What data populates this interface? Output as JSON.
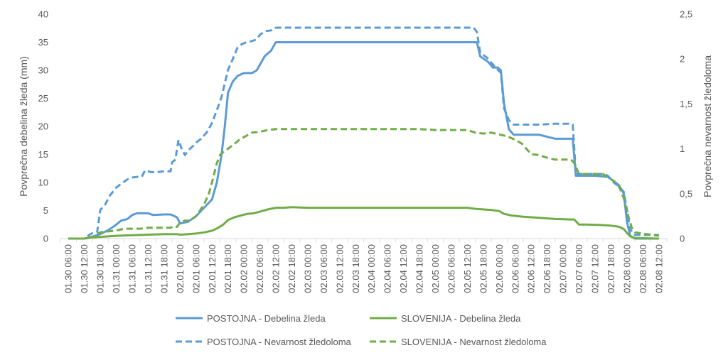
{
  "chart_data": {
    "type": "line",
    "x_categories": [
      "01.30 06:00",
      "01.30 12:00",
      "01.30 18:00",
      "01.31 00:00",
      "01.31 06:00",
      "01.31 12:00",
      "01.31 18:00",
      "02.01 00:00",
      "02.01 06:00",
      "02.01 12:00",
      "02.01 18:00",
      "02.02 00:00",
      "02.02 06:00",
      "02.02 12:00",
      "02.02 18:00",
      "02.03 00:00",
      "02.03 06:00",
      "02.03 12:00",
      "02.03 18:00",
      "02.04 00:00",
      "02.04 06:00",
      "02.04 12:00",
      "02.04 18:00",
      "02.05 00:00",
      "02.05 06:00",
      "02.05 12:00",
      "02.05 18:00",
      "02.06 00:00",
      "02.06 06:00",
      "02.06 12:00",
      "02.06 18:00",
      "02.07 00:00",
      "02.07 06:00",
      "02.07 12:00",
      "02.07 18:00",
      "02.08 00:00",
      "02.08 06:00",
      "02.08 12:00"
    ],
    "y_left": {
      "label": "Povprečna debelina žleda (mm)",
      "min": 0,
      "max": 40,
      "ticks": [
        "0",
        "5",
        "10",
        "15",
        "20",
        "25",
        "30",
        "35",
        "40"
      ]
    },
    "y_right": {
      "label": "Povprečna nevarnost žledoloma",
      "min": 0,
      "max": 2.5,
      "ticks": [
        "0",
        "0,5",
        "1",
        "1,5",
        "2",
        "2,5"
      ]
    },
    "grid": false,
    "legend_position": "bottom",
    "series": [
      {
        "name": "POSTOJNA - Debelina žleda",
        "axis": "left",
        "color": "#5b9bd5",
        "dash": "solid",
        "points": [
          [
            0,
            0
          ],
          [
            0.5,
            0
          ],
          [
            1,
            0
          ],
          [
            1.5,
            0.3
          ],
          [
            2,
            0.8
          ],
          [
            2.5,
            1.5
          ],
          [
            3,
            2.5
          ],
          [
            3.3,
            3.2
          ],
          [
            3.7,
            3.5
          ],
          [
            4,
            4.2
          ],
          [
            4.3,
            4.5
          ],
          [
            5,
            4.5
          ],
          [
            5.3,
            4.2
          ],
          [
            6,
            4.3
          ],
          [
            6.4,
            4.3
          ],
          [
            6.8,
            3.8
          ],
          [
            7,
            2.7
          ],
          [
            7.5,
            3
          ],
          [
            8,
            4
          ],
          [
            8.5,
            5.5
          ],
          [
            9,
            7
          ],
          [
            9.3,
            10
          ],
          [
            9.6,
            15
          ],
          [
            9.8,
            20
          ],
          [
            10,
            26
          ],
          [
            10.3,
            28
          ],
          [
            10.6,
            29
          ],
          [
            11,
            29.5
          ],
          [
            11.5,
            29.5
          ],
          [
            11.8,
            30
          ],
          [
            12,
            31
          ],
          [
            12.3,
            32.5
          ],
          [
            12.7,
            33.5
          ],
          [
            13,
            35
          ],
          [
            14,
            35
          ],
          [
            15,
            35
          ],
          [
            20,
            35
          ],
          [
            25,
            35
          ],
          [
            25.6,
            35
          ],
          [
            25.8,
            32.5
          ],
          [
            26.3,
            31.5
          ],
          [
            26.6,
            30.5
          ],
          [
            26.9,
            30.5
          ],
          [
            27.1,
            30
          ],
          [
            27.3,
            24
          ],
          [
            27.6,
            19.5
          ],
          [
            27.9,
            18.5
          ],
          [
            28.5,
            18.5
          ],
          [
            29.5,
            18.5
          ],
          [
            30.5,
            17.8
          ],
          [
            31.3,
            17.8
          ],
          [
            31.6,
            17.8
          ],
          [
            31.8,
            11.2
          ],
          [
            32.5,
            11.2
          ],
          [
            33,
            11.2
          ],
          [
            33.8,
            11
          ],
          [
            34.2,
            10.2
          ],
          [
            34.5,
            9.5
          ],
          [
            34.8,
            8
          ],
          [
            35,
            3
          ],
          [
            35.2,
            0.5
          ],
          [
            35.5,
            0
          ],
          [
            37,
            0
          ]
        ]
      },
      {
        "name": "SLOVENIJA - Debelina žleda",
        "axis": "left",
        "color": "#70ad47",
        "dash": "solid",
        "points": [
          [
            0,
            0
          ],
          [
            1,
            0
          ],
          [
            1.5,
            0.2
          ],
          [
            2,
            0.3
          ],
          [
            3,
            0.5
          ],
          [
            4,
            0.6
          ],
          [
            5,
            0.7
          ],
          [
            6,
            0.8
          ],
          [
            6.8,
            0.8
          ],
          [
            7,
            0.7
          ],
          [
            7.5,
            0.8
          ],
          [
            8,
            0.9
          ],
          [
            8.5,
            1.1
          ],
          [
            9,
            1.4
          ],
          [
            9.3,
            1.8
          ],
          [
            9.7,
            2.5
          ],
          [
            10,
            3.3
          ],
          [
            10.4,
            3.8
          ],
          [
            10.8,
            4.1
          ],
          [
            11.2,
            4.4
          ],
          [
            11.6,
            4.5
          ],
          [
            12,
            4.8
          ],
          [
            12.5,
            5.2
          ],
          [
            13,
            5.5
          ],
          [
            13.5,
            5.5
          ],
          [
            14,
            5.6
          ],
          [
            15,
            5.5
          ],
          [
            20,
            5.5
          ],
          [
            25,
            5.5
          ],
          [
            25.5,
            5.3
          ],
          [
            26.5,
            5.1
          ],
          [
            27,
            4.9
          ],
          [
            27.3,
            4.4
          ],
          [
            27.8,
            4.1
          ],
          [
            28.5,
            3.9
          ],
          [
            29.5,
            3.7
          ],
          [
            30.5,
            3.5
          ],
          [
            31.5,
            3.4
          ],
          [
            31.7,
            3.4
          ],
          [
            32,
            2.5
          ],
          [
            32.5,
            2.5
          ],
          [
            33.5,
            2.4
          ],
          [
            34,
            2.3
          ],
          [
            34.5,
            2.1
          ],
          [
            34.8,
            1.7
          ],
          [
            35,
            1.0
          ],
          [
            35.2,
            0.4
          ],
          [
            35.5,
            0.1
          ],
          [
            37,
            0
          ]
        ]
      },
      {
        "name": "POSTOJNA - Nevarnost žledoloma",
        "axis": "right",
        "color": "#5b9bd5",
        "dash": "dashed",
        "points": [
          [
            0,
            0
          ],
          [
            1,
            0
          ],
          [
            1.3,
            0.04
          ],
          [
            1.5,
            0.06
          ],
          [
            1.8,
            0.07
          ],
          [
            2,
            0.32
          ],
          [
            2.3,
            0.38
          ],
          [
            2.6,
            0.48
          ],
          [
            3,
            0.57
          ],
          [
            3.3,
            0.61
          ],
          [
            3.7,
            0.66
          ],
          [
            4,
            0.68
          ],
          [
            4.4,
            0.69
          ],
          [
            4.6,
            0.69
          ],
          [
            4.8,
            0.76
          ],
          [
            5.2,
            0.74
          ],
          [
            5.5,
            0.74
          ],
          [
            6,
            0.75
          ],
          [
            6.4,
            0.75
          ],
          [
            6.5,
            0.85
          ],
          [
            6.7,
            0.88
          ],
          [
            6.9,
            1.1
          ],
          [
            7.1,
            1.0
          ],
          [
            7.3,
            0.93
          ],
          [
            7.5,
            0.98
          ],
          [
            7.8,
            1.03
          ],
          [
            8,
            1.07
          ],
          [
            8.3,
            1.11
          ],
          [
            8.7,
            1.19
          ],
          [
            9,
            1.29
          ],
          [
            9.3,
            1.43
          ],
          [
            9.6,
            1.58
          ],
          [
            9.8,
            1.73
          ],
          [
            10,
            1.88
          ],
          [
            10.3,
            2.0
          ],
          [
            10.6,
            2.13
          ],
          [
            10.9,
            2.17
          ],
          [
            11.2,
            2.19
          ],
          [
            11.5,
            2.2
          ],
          [
            11.8,
            2.22
          ],
          [
            12,
            2.27
          ],
          [
            12.3,
            2.31
          ],
          [
            12.7,
            2.32
          ],
          [
            13,
            2.35
          ],
          [
            14,
            2.35
          ],
          [
            15,
            2.35
          ],
          [
            20,
            2.35
          ],
          [
            25,
            2.35
          ],
          [
            25.4,
            2.35
          ],
          [
            25.6,
            2.3
          ],
          [
            25.8,
            2.07
          ],
          [
            26.2,
            2.02
          ],
          [
            26.6,
            1.94
          ],
          [
            26.9,
            1.88
          ],
          [
            27.1,
            1.85
          ],
          [
            27.3,
            1.45
          ],
          [
            27.6,
            1.32
          ],
          [
            27.9,
            1.27
          ],
          [
            28.5,
            1.27
          ],
          [
            29.5,
            1.27
          ],
          [
            30.5,
            1.28
          ],
          [
            31.3,
            1.28
          ],
          [
            31.6,
            1.27
          ],
          [
            31.8,
            0.72
          ],
          [
            32.5,
            0.72
          ],
          [
            33.5,
            0.72
          ],
          [
            33.8,
            0.7
          ],
          [
            34.2,
            0.62
          ],
          [
            34.5,
            0.58
          ],
          [
            34.8,
            0.52
          ],
          [
            35,
            0.32
          ],
          [
            35.2,
            0.1
          ],
          [
            35.5,
            0.04
          ],
          [
            37,
            0.04
          ]
        ]
      },
      {
        "name": "SLOVENIJA - Nevarnost žledoloma",
        "axis": "right",
        "color": "#70ad47",
        "dash": "dashed",
        "points": [
          [
            0,
            0
          ],
          [
            1,
            0
          ],
          [
            1.5,
            0.02
          ],
          [
            1.8,
            0.05
          ],
          [
            2,
            0.07
          ],
          [
            2.5,
            0.08
          ],
          [
            3,
            0.09
          ],
          [
            3.5,
            0.11
          ],
          [
            4,
            0.11
          ],
          [
            4.5,
            0.11
          ],
          [
            5,
            0.12
          ],
          [
            5.5,
            0.12
          ],
          [
            6,
            0.12
          ],
          [
            6.4,
            0.12
          ],
          [
            6.6,
            0.14
          ],
          [
            6.8,
            0.13
          ],
          [
            7,
            0.18
          ],
          [
            7.3,
            0.2
          ],
          [
            7.6,
            0.2
          ],
          [
            8,
            0.25
          ],
          [
            8.5,
            0.38
          ],
          [
            8.8,
            0.5
          ],
          [
            9,
            0.63
          ],
          [
            9.3,
            0.84
          ],
          [
            9.5,
            0.93
          ],
          [
            9.8,
            0.98
          ],
          [
            10,
            1.0
          ],
          [
            10.3,
            1.04
          ],
          [
            10.7,
            1.1
          ],
          [
            11,
            1.13
          ],
          [
            11.5,
            1.18
          ],
          [
            12,
            1.19
          ],
          [
            12.5,
            1.21
          ],
          [
            13,
            1.22
          ],
          [
            14,
            1.22
          ],
          [
            15,
            1.22
          ],
          [
            20,
            1.22
          ],
          [
            22,
            1.22
          ],
          [
            23,
            1.21
          ],
          [
            25,
            1.21
          ],
          [
            25.5,
            1.18
          ],
          [
            26,
            1.17
          ],
          [
            26.5,
            1.18
          ],
          [
            27,
            1.16
          ],
          [
            27.5,
            1.14
          ],
          [
            28,
            1.1
          ],
          [
            28.4,
            1.06
          ],
          [
            28.7,
            1.0
          ],
          [
            29,
            0.94
          ],
          [
            29.5,
            0.93
          ],
          [
            30,
            0.9
          ],
          [
            30.5,
            0.88
          ],
          [
            31,
            0.88
          ],
          [
            31.5,
            0.88
          ],
          [
            31.7,
            0.84
          ],
          [
            32,
            0.72
          ],
          [
            32.5,
            0.72
          ],
          [
            33.5,
            0.72
          ],
          [
            33.8,
            0.68
          ],
          [
            34.2,
            0.64
          ],
          [
            34.5,
            0.58
          ],
          [
            34.8,
            0.45
          ],
          [
            35,
            0.3
          ],
          [
            35.3,
            0.12
          ],
          [
            35.5,
            0.07
          ],
          [
            37,
            0.03
          ]
        ]
      }
    ]
  }
}
